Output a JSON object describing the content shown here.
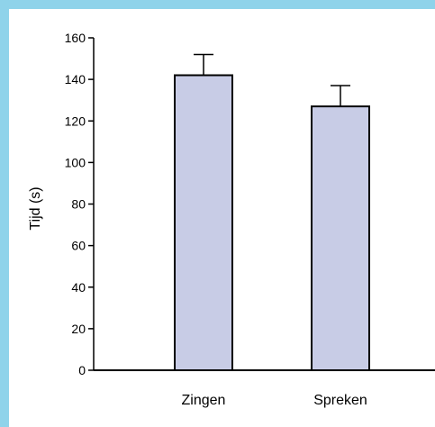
{
  "colors": {
    "frame": "#8fd3ea",
    "background": "#ffffff",
    "bar_fill": "#c8cce6",
    "bar_stroke": "#000000"
  },
  "chart_data": {
    "type": "bar",
    "title": "",
    "xlabel": "",
    "ylabel": "Tijd (s)",
    "ylim": [
      0,
      160
    ],
    "yticks": [
      0,
      20,
      40,
      60,
      80,
      100,
      120,
      140,
      160
    ],
    "categories": [
      "Zingen",
      "Spreken"
    ],
    "values": [
      142,
      127
    ],
    "error_upper": [
      10,
      10
    ],
    "grid": false,
    "legend": "none"
  }
}
